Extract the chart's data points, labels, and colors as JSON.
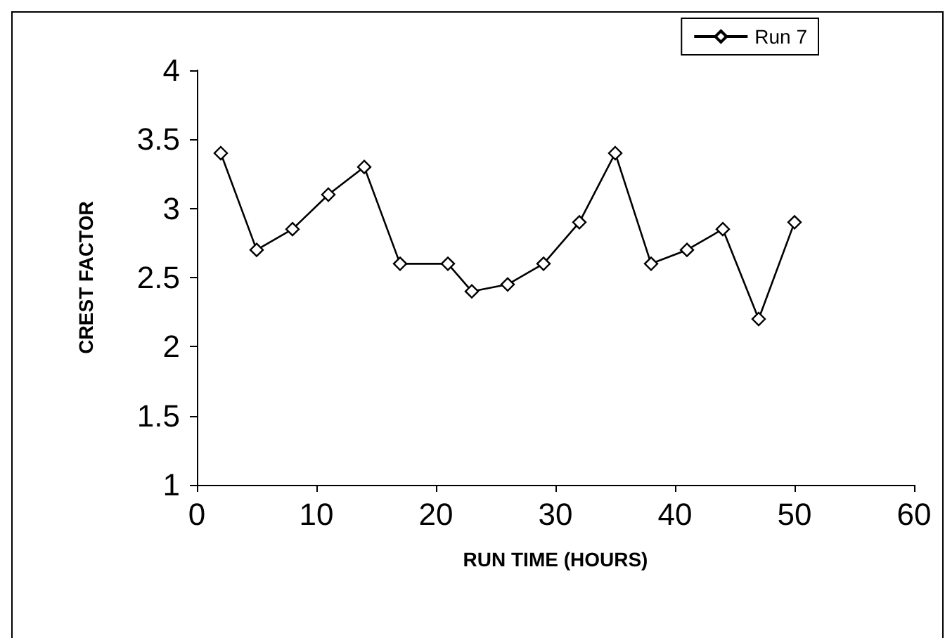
{
  "chart_data": {
    "type": "line",
    "xlabel": "RUN TIME (HOURS)",
    "ylabel": "CREST FACTOR",
    "x": [
      2,
      5,
      8,
      11,
      14,
      17,
      21,
      23,
      26,
      29,
      32,
      35,
      38,
      41,
      44,
      47,
      50
    ],
    "series": [
      {
        "name": "Run 7",
        "color": "#000000",
        "values": [
          3.4,
          2.7,
          2.85,
          3.1,
          3.3,
          2.6,
          2.6,
          2.4,
          2.45,
          2.6,
          2.9,
          3.4,
          2.6,
          2.7,
          2.85,
          2.2,
          2.9
        ]
      }
    ],
    "xlim": [
      0,
      60
    ],
    "xticks": [
      0,
      10,
      20,
      30,
      40,
      50,
      60
    ],
    "ylim": [
      1,
      4
    ],
    "yticks": [
      1,
      1.5,
      2,
      2.5,
      3,
      3.5,
      4
    ],
    "grid": false,
    "legend": "top right",
    "marker": "diamond",
    "line_style": "solid"
  }
}
